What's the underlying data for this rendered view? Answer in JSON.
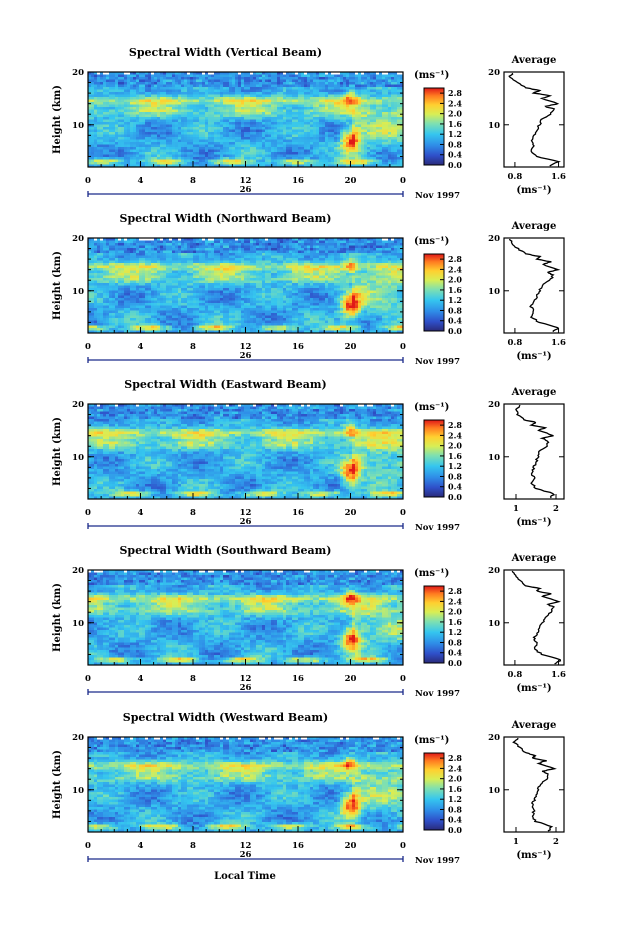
{
  "figure": {
    "bottom_xlabel": "Local Time",
    "date_label": "Nov 1997",
    "day_label": "26"
  },
  "chart_data": [
    {
      "type": "heatmap",
      "title": "Spectral Width (Vertical Beam)",
      "ylabel": "Height (km)",
      "x_ticks": [
        "0",
        "4",
        "8",
        "12",
        "16",
        "20",
        "0"
      ],
      "y_ticks": [
        "20",
        "10"
      ],
      "xlim": [
        0,
        24
      ],
      "ylim": [
        2,
        20
      ],
      "colorbar": {
        "unit": "(ms⁻¹)",
        "ticks": [
          "2.8",
          "2.4",
          "2.0",
          "1.6",
          "1.2",
          "0.8",
          "0.4",
          "0.0"
        ],
        "range": [
          0,
          3.0
        ]
      },
      "average": {
        "title": "Average",
        "unit": "(ms⁻¹)",
        "x_ticks": [
          "0.8",
          "1.6"
        ],
        "xlim": [
          0.6,
          1.7
        ],
        "y_ticks": [
          "20",
          "10"
        ],
        "height_km": [
          2.2,
          3.0,
          4.0,
          5.0,
          6.0,
          7.0,
          8.0,
          9.0,
          10.0,
          11.0,
          12.0,
          13.0,
          13.5,
          14.0,
          15.0,
          15.5,
          16.0,
          16.5,
          17.0,
          18.0,
          19.0,
          19.8
        ],
        "width": [
          1.45,
          1.6,
          1.2,
          1.1,
          1.15,
          1.1,
          1.15,
          1.2,
          1.25,
          1.3,
          1.45,
          1.5,
          1.35,
          1.6,
          1.3,
          1.45,
          1.15,
          1.25,
          1.0,
          0.85,
          0.7,
          0.75
        ]
      }
    },
    {
      "type": "heatmap",
      "title": "Spectral Width (Northward Beam)",
      "ylabel": "Height (km)",
      "x_ticks": [
        "0",
        "4",
        "8",
        "12",
        "16",
        "20",
        "0"
      ],
      "y_ticks": [
        "20",
        "10"
      ],
      "xlim": [
        0,
        24
      ],
      "ylim": [
        2,
        20
      ],
      "colorbar": {
        "unit": "(ms⁻¹)",
        "ticks": [
          "2.8",
          "2.4",
          "2.0",
          "1.6",
          "1.2",
          "0.8",
          "0.4",
          "0.0"
        ],
        "range": [
          0,
          3.0
        ]
      },
      "average": {
        "title": "Average",
        "unit": "(ms⁻¹)",
        "x_ticks": [
          "0.8",
          "1.6"
        ],
        "xlim": [
          0.6,
          1.7
        ],
        "y_ticks": [
          "20",
          "10"
        ],
        "height_km": [
          2.2,
          3.0,
          4.0,
          5.0,
          6.0,
          7.0,
          8.0,
          9.0,
          10.0,
          11.0,
          12.0,
          13.0,
          13.5,
          14.0,
          15.0,
          15.5,
          16.0,
          16.5,
          17.0,
          18.0,
          19.0,
          19.8
        ],
        "width": [
          1.5,
          1.6,
          1.25,
          1.1,
          1.15,
          1.1,
          1.15,
          1.2,
          1.25,
          1.3,
          1.45,
          1.5,
          1.4,
          1.6,
          1.3,
          1.45,
          1.2,
          1.25,
          1.0,
          0.85,
          0.75,
          0.7
        ]
      }
    },
    {
      "type": "heatmap",
      "title": "Spectral Width (Eastward Beam)",
      "ylabel": "Height (km)",
      "x_ticks": [
        "0",
        "4",
        "8",
        "12",
        "16",
        "20",
        "0"
      ],
      "y_ticks": [
        "20",
        "10"
      ],
      "xlim": [
        0,
        24
      ],
      "ylim": [
        2,
        20
      ],
      "colorbar": {
        "unit": "(ms⁻¹)",
        "ticks": [
          "2.8",
          "2.4",
          "2.0",
          "1.6",
          "1.2",
          "0.8",
          "0.4",
          "0.0"
        ],
        "range": [
          0,
          3.0
        ]
      },
      "average": {
        "title": "Average",
        "unit": "(ms⁻¹)",
        "x_ticks": [
          "1",
          "2"
        ],
        "xlim": [
          0.7,
          2.2
        ],
        "y_ticks": [
          "20",
          "10"
        ],
        "height_km": [
          2.2,
          3.0,
          4.0,
          5.0,
          6.0,
          7.0,
          8.0,
          9.0,
          10.0,
          11.0,
          12.0,
          13.0,
          13.5,
          14.0,
          15.0,
          15.5,
          16.0,
          16.5,
          17.0,
          18.0,
          19.0,
          19.8
        ],
        "width": [
          1.85,
          1.95,
          1.5,
          1.4,
          1.45,
          1.4,
          1.45,
          1.5,
          1.55,
          1.6,
          1.75,
          1.8,
          1.65,
          1.95,
          1.55,
          1.75,
          1.4,
          1.5,
          1.2,
          1.05,
          1.0,
          1.1
        ]
      }
    },
    {
      "type": "heatmap",
      "title": "Spectral Width (Southward Beam)",
      "ylabel": "Height (km)",
      "x_ticks": [
        "0",
        "4",
        "8",
        "12",
        "16",
        "20",
        "0"
      ],
      "y_ticks": [
        "20",
        "10"
      ],
      "xlim": [
        0,
        24
      ],
      "ylim": [
        2,
        20
      ],
      "colorbar": {
        "unit": "(ms⁻¹)",
        "ticks": [
          "2.8",
          "2.4",
          "2.0",
          "1.6",
          "1.2",
          "0.8",
          "0.4",
          "0.0"
        ],
        "range": [
          0,
          3.0
        ]
      },
      "average": {
        "title": "Average",
        "unit": "(ms⁻¹)",
        "x_ticks": [
          "0.8",
          "1.6"
        ],
        "xlim": [
          0.6,
          1.7
        ],
        "y_ticks": [
          "20",
          "10"
        ],
        "height_km": [
          2.2,
          3.0,
          4.0,
          5.0,
          6.0,
          7.0,
          8.0,
          9.0,
          10.0,
          11.0,
          12.0,
          13.0,
          13.5,
          14.0,
          15.0,
          15.5,
          16.0,
          16.5,
          17.0,
          18.0,
          19.0,
          19.8
        ],
        "width": [
          1.55,
          1.65,
          1.3,
          1.15,
          1.2,
          1.15,
          1.2,
          1.25,
          1.3,
          1.35,
          1.45,
          1.5,
          1.4,
          1.6,
          1.3,
          1.45,
          1.2,
          1.25,
          1.0,
          0.9,
          0.8,
          0.75
        ]
      }
    },
    {
      "type": "heatmap",
      "title": "Spectral Width (Westward Beam)",
      "ylabel": "Height (km)",
      "x_ticks": [
        "0",
        "4",
        "8",
        "12",
        "16",
        "20",
        "0"
      ],
      "y_ticks": [
        "20",
        "10"
      ],
      "xlim": [
        0,
        24
      ],
      "ylim": [
        2,
        20
      ],
      "colorbar": {
        "unit": "(ms⁻¹)",
        "ticks": [
          "2.8",
          "2.4",
          "2.0",
          "1.6",
          "1.2",
          "0.8",
          "0.4",
          "0.0"
        ],
        "range": [
          0,
          3.0
        ]
      },
      "average": {
        "title": "Average",
        "unit": "(ms⁻¹)",
        "x_ticks": [
          "1",
          "2"
        ],
        "xlim": [
          0.7,
          2.2
        ],
        "y_ticks": [
          "20",
          "10"
        ],
        "height_km": [
          2.2,
          3.0,
          4.0,
          5.0,
          6.0,
          7.0,
          8.0,
          9.0,
          10.0,
          11.0,
          12.0,
          13.0,
          13.5,
          14.0,
          15.0,
          15.5,
          16.0,
          16.5,
          17.0,
          18.0,
          19.0,
          19.8
        ],
        "width": [
          1.8,
          1.9,
          1.5,
          1.4,
          1.45,
          1.4,
          1.45,
          1.5,
          1.55,
          1.6,
          1.75,
          1.8,
          1.65,
          1.95,
          1.55,
          1.75,
          1.4,
          1.5,
          1.25,
          1.1,
          0.95,
          1.05
        ]
      }
    }
  ]
}
